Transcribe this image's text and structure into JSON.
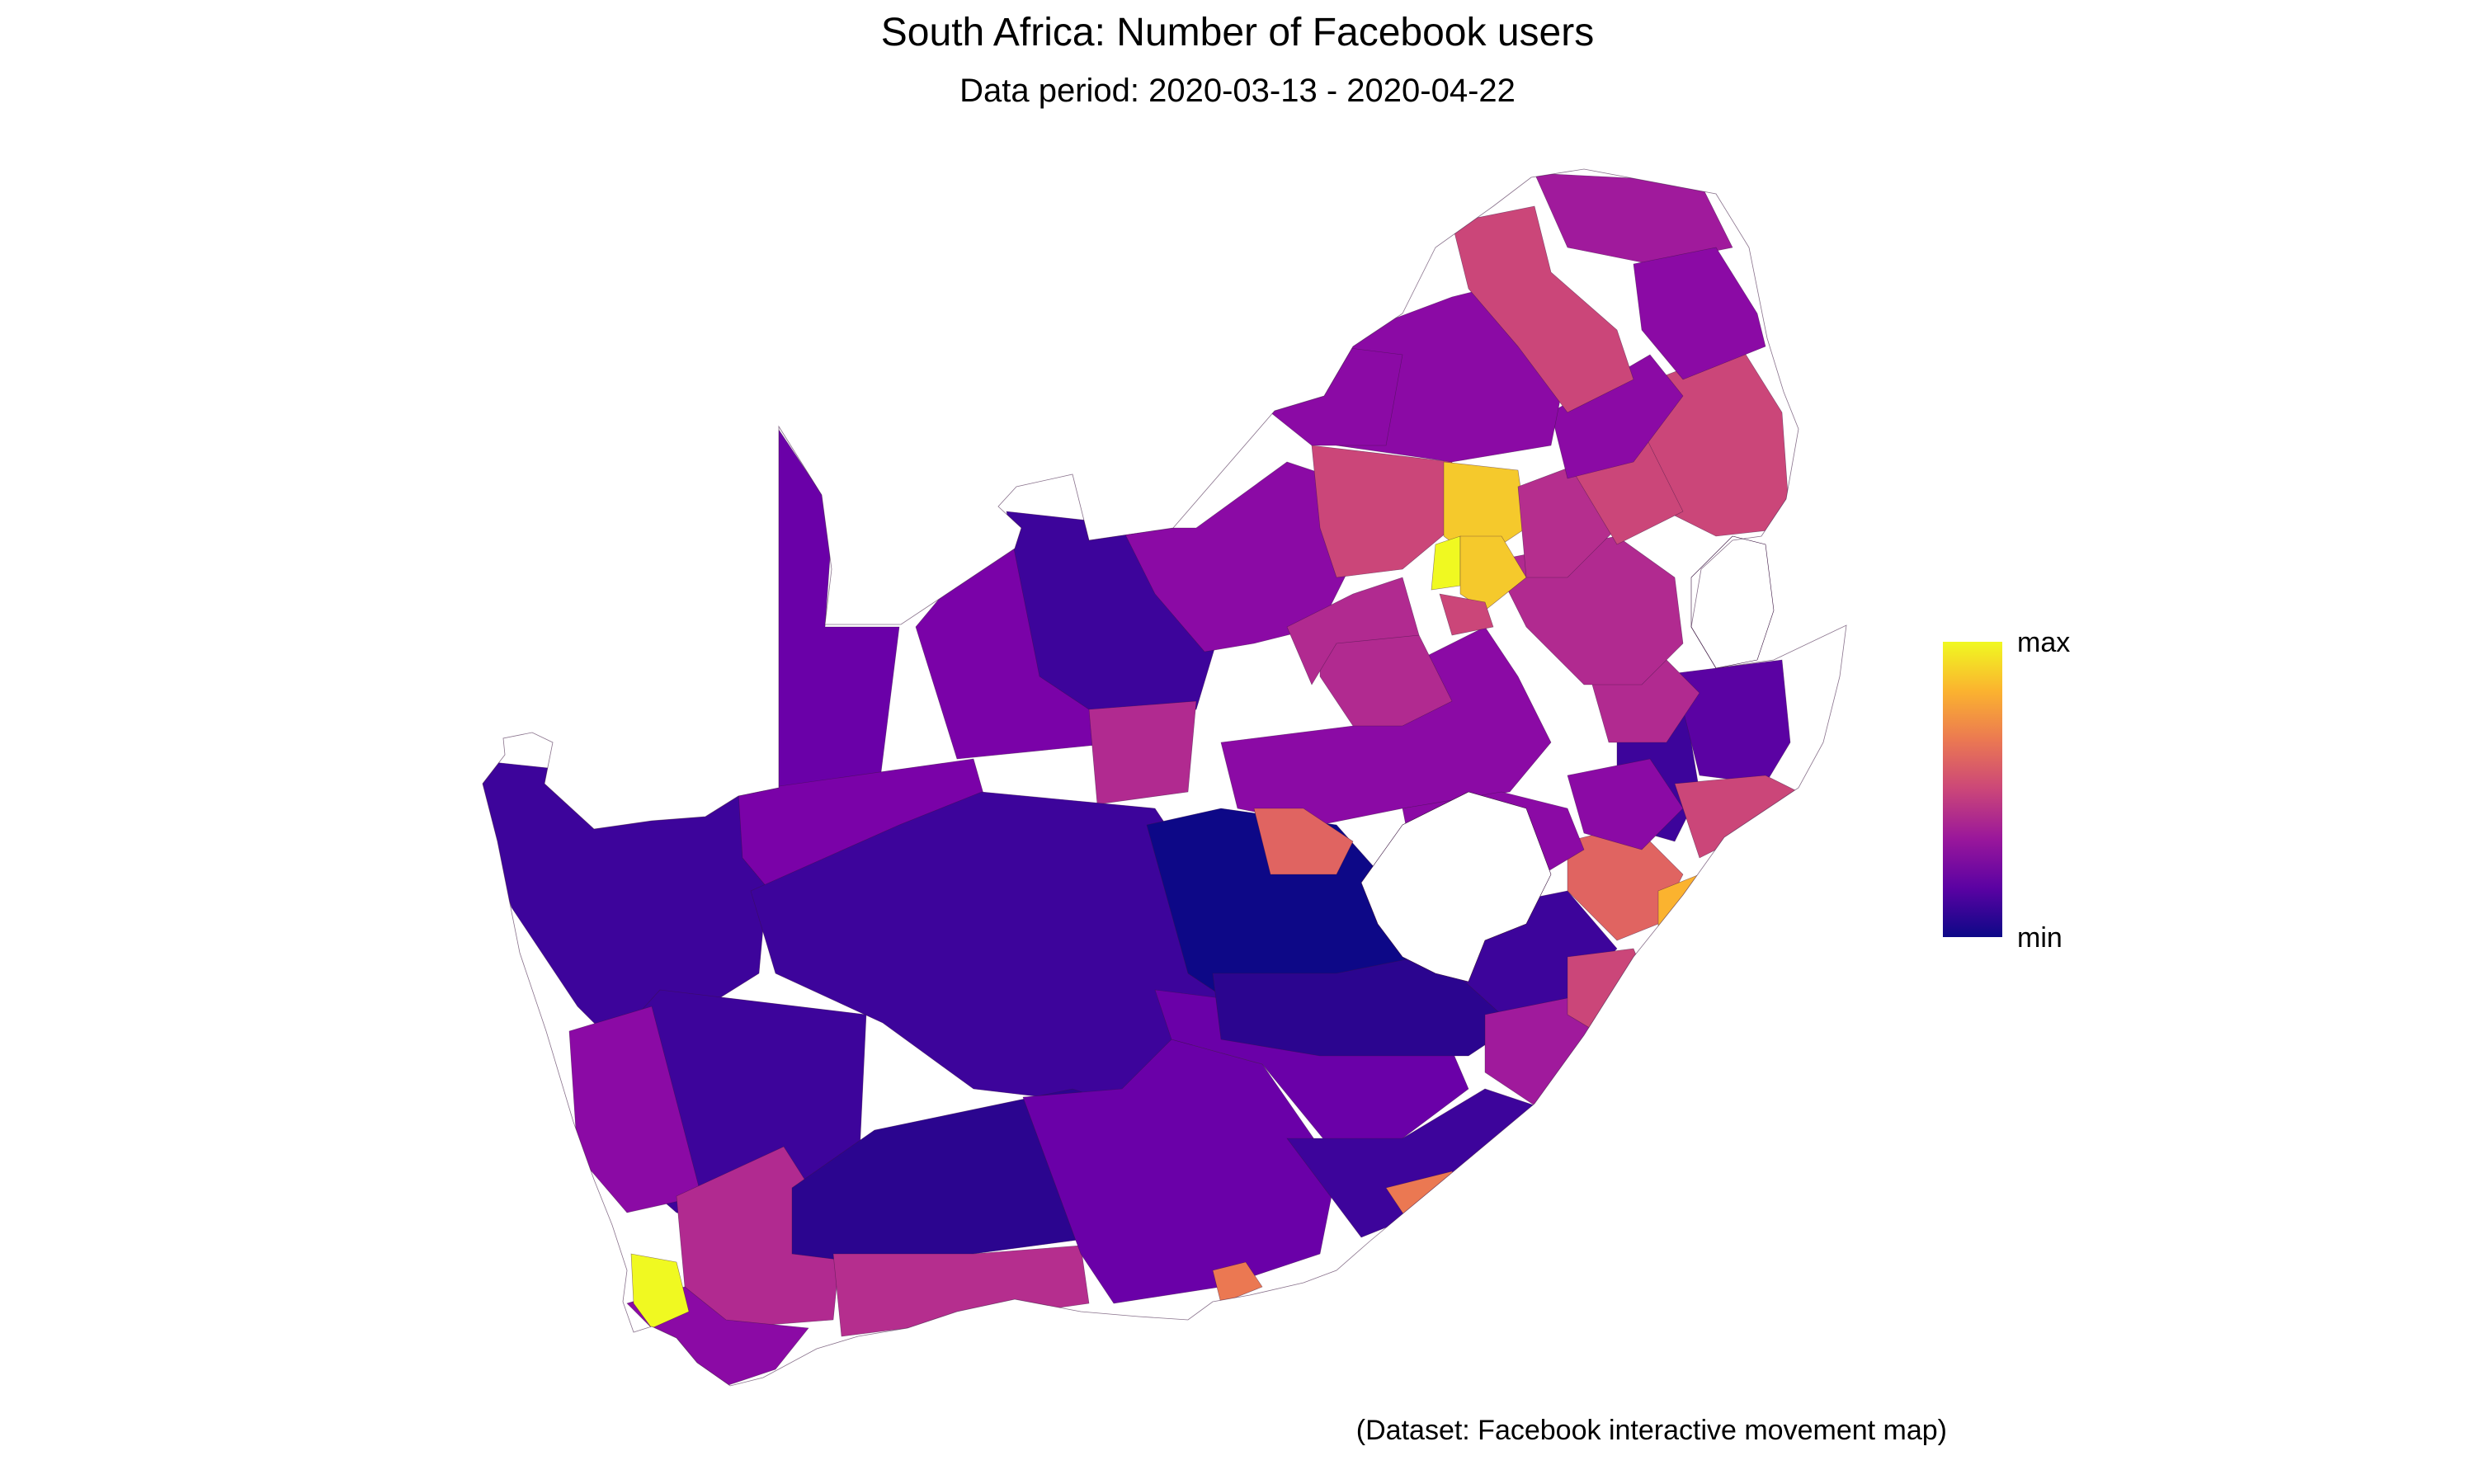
{
  "header": {
    "title": "South Africa: Number of Facebook users",
    "subtitle": "Data period: 2020-03-13 - 2020-04-22"
  },
  "caption": "(Dataset: Facebook interactive movement map)",
  "legend": {
    "max_label": "max",
    "min_label": "min",
    "colors": [
      "#0d0887",
      "#5b02a3",
      "#9a179b",
      "#cb4679",
      "#eb7852",
      "#fbb32f",
      "#f0f921"
    ]
  },
  "colors": {
    "background": "#ffffff",
    "border": "#3a1440"
  }
}
